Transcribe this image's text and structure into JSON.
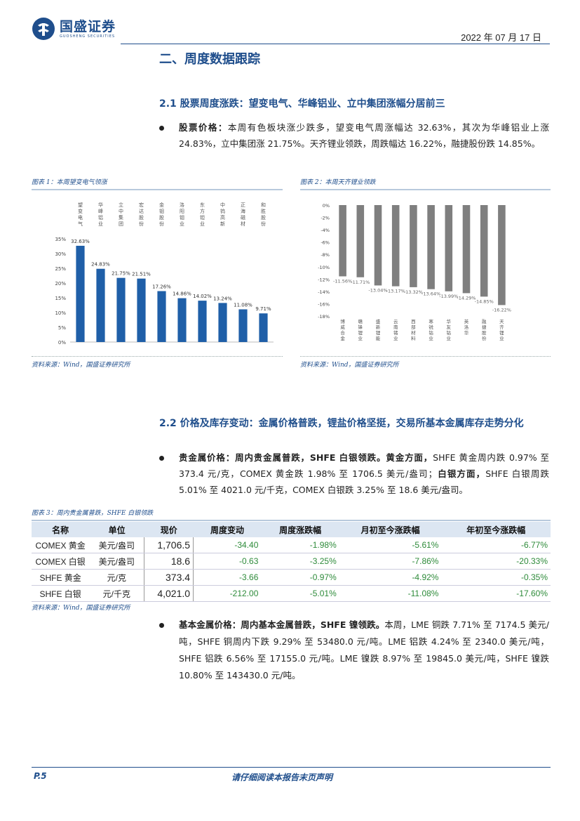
{
  "header": {
    "logo_cn": "国盛证券",
    "logo_en": "GUOSHENG SECURITIES",
    "date": "2022 年 07 月 17 日"
  },
  "section": {
    "title": "二、周度数据跟踪"
  },
  "s21": {
    "title": "2.1 股票周度涨跌：望变电气、华峰铝业、立中集团涨幅分居前三",
    "bullet_lead": "股票价格：",
    "bullet_text": "本周有色板块涨少跌多，望变电气周涨幅达 32.63%，其次为华峰铝业上涨 24.83%，立中集团涨 21.75%。天齐锂业领跌，周跌幅达 16.22%，融捷股份跌 14.85%。"
  },
  "fig1": {
    "caption": "图表 1：本周望变电气领涨",
    "source": "资料来源：Wind，国盛证券研究所"
  },
  "fig2": {
    "caption": "图表 2：本周天齐锂业领跌",
    "source": "资料来源：Wind，国盛证券研究所"
  },
  "chart_data": [
    {
      "type": "bar",
      "categories": [
        "望变电气",
        "华峰铝业",
        "立中集团",
        "宏达股份",
        "金钼股份",
        "洛阳钼业",
        "东方钽业",
        "中钨高新",
        "正海磁材",
        "和胜股份"
      ],
      "values": [
        32.63,
        24.83,
        21.75,
        21.51,
        17.26,
        14.86,
        14.02,
        13.24,
        11.08,
        9.71
      ],
      "data_labels": [
        "32.63%",
        "24.83%",
        "21.75%",
        "21.51%",
        "17.26%",
        "14.86%",
        "14.02%",
        "13.24%",
        "11.08%",
        "9.71%"
      ],
      "yticks": [
        "35%",
        "30%",
        "25%",
        "20%",
        "15%",
        "10%",
        "5%",
        "0%"
      ],
      "ylim": [
        0,
        35
      ],
      "color": "#1f5fa8"
    },
    {
      "type": "bar",
      "categories": [
        "博威合金",
        "赣锋锂业",
        "盛新锂能",
        "云南锗业",
        "西部材料",
        "寒锐钴业",
        "华友钴业",
        "英洛华",
        "融捷股份",
        "天齐锂业"
      ],
      "values": [
        -11.56,
        -11.71,
        -13.04,
        -13.17,
        -13.32,
        -13.64,
        -13.99,
        -14.29,
        -14.85,
        -16.22
      ],
      "data_labels": [
        "-11.56%",
        "-11.71%",
        "-13.04%",
        "-13.17%",
        "-13.32%",
        "-13.64%",
        "-13.99%",
        "-14.29%",
        "-14.85%",
        "-16.22%"
      ],
      "yticks": [
        "0%",
        "-2%",
        "-4%",
        "-6%",
        "-8%",
        "-10%",
        "-12%",
        "-14%",
        "-16%",
        "-18%"
      ],
      "ylim": [
        -18,
        0
      ],
      "color": "#7f7f7f"
    }
  ],
  "s22": {
    "title": "2.2 价格及库存变动：金属价格普跌，锂盐价格坚挺，交易所基本金属库存走势分化",
    "b1_lead": "贵金属价格：周内贵金属普跌，SHFE 白银领跌。黄金方面，",
    "b1_text1": "SHFE 黄金周内跌 0.97% 至 373.4 元/克，COMEX 黄金跌 1.98% 至 1706.5 美元/盎司；",
    "b1_mid": "白银方面，",
    "b1_text2": "SHFE 白银周跌 5.01% 至 4021.0 元/千克，COMEX 白银跌 3.25% 至 18.6 美元/盎司。",
    "b2_lead": "基本金属价格：周内基本金属普跌，SHFE 镍领跌。",
    "b2_text": "本周，LME 铜跌 7.71% 至 7174.5 美元/吨，SHFE 铜周内下跌 9.29% 至 53480.0 元/吨。LME 铝跌 4.24% 至 2340.0 美元/吨，SHFE 铝跌 6.56% 至 17155.0 元/吨。LME 镍跌 8.97% 至 19845.0 美元/吨，SHFE 镍跌 10.80% 至 143430.0 元/吨。"
  },
  "fig3": {
    "caption": "图表 3：周内贵金属普跌，SHFE 白银领跌",
    "source": "资料来源：Wind，国盛证券研究所",
    "headers": [
      "名称",
      "单位",
      "现价",
      "周度变动",
      "周度涨跌幅",
      "月初至今涨跌幅",
      "年初至今涨跌幅"
    ],
    "rows": [
      [
        "COMEX 黄金",
        "美元/盎司",
        "1,706.5",
        "-34.40",
        "-1.98%",
        "-5.61%",
        "-6.77%"
      ],
      [
        "COMEX 白银",
        "美元/盎司",
        "18.6",
        "-0.63",
        "-3.25%",
        "-7.86%",
        "-20.33%"
      ],
      [
        "SHFE 黄金",
        "元/克",
        "373.4",
        "-3.66",
        "-0.97%",
        "-4.92%",
        "-0.35%"
      ],
      [
        "SHFE 白银",
        "元/千克",
        "4,021.0",
        "-212.00",
        "-5.01%",
        "-11.08%",
        "-17.60%"
      ]
    ]
  },
  "footer": {
    "page": "P.5",
    "disclaimer": "请仔细阅读本报告末页声明"
  }
}
